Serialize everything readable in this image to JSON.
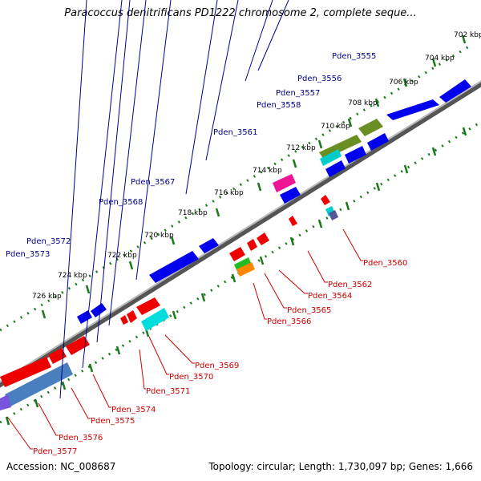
{
  "title": "Paracoccus denitrificans PD1222 chromosome 2, complete seque...",
  "footer": {
    "accession": "Accession: NC_008687",
    "summary": "Topology: circular; Length: 1,730,097 bp; Genes: 1,666"
  },
  "colors": {
    "label_upper": "#00008b",
    "label_lower": "#cc0000",
    "ticks": "#1a7a1a"
  },
  "ruler_ticks": [
    {
      "kbp": 702,
      "label": "702 kbp"
    },
    {
      "kbp": 704,
      "label": "704 kbp"
    },
    {
      "kbp": 706,
      "label": "706 kbp"
    },
    {
      "kbp": 708,
      "label": "708 kbp"
    },
    {
      "kbp": 710,
      "label": "710 kbp"
    },
    {
      "kbp": 712,
      "label": "712 kbp"
    },
    {
      "kbp": 714,
      "label": "714 kbp"
    },
    {
      "kbp": 716,
      "label": "716 kbp"
    },
    {
      "kbp": 718,
      "label": "718 kbp"
    },
    {
      "kbp": 720,
      "label": "720 kbp"
    },
    {
      "kbp": 722,
      "label": "722 kbp"
    },
    {
      "kbp": 724,
      "label": "724 kbp"
    },
    {
      "kbp": 726,
      "label": "726 kbp"
    }
  ],
  "upper_genes": [
    {
      "name": "Pden_3555"
    },
    {
      "name": "Pden_3556"
    },
    {
      "name": "Pden_3557"
    },
    {
      "name": "Pden_3558"
    },
    {
      "name": "Pden_3561"
    },
    {
      "name": "Pden_3567"
    },
    {
      "name": "Pden_3568"
    },
    {
      "name": "Pden_3572"
    },
    {
      "name": "Pden_3573"
    }
  ],
  "lower_genes": [
    {
      "name": "Pden_3560"
    },
    {
      "name": "Pden_3562"
    },
    {
      "name": "Pden_3564"
    },
    {
      "name": "Pden_3565"
    },
    {
      "name": "Pden_3566"
    },
    {
      "name": "Pden_3569"
    },
    {
      "name": "Pden_3570"
    },
    {
      "name": "Pden_3571"
    },
    {
      "name": "Pden_3574"
    },
    {
      "name": "Pden_3575"
    },
    {
      "name": "Pden_3576"
    },
    {
      "name": "Pden_3577"
    }
  ]
}
